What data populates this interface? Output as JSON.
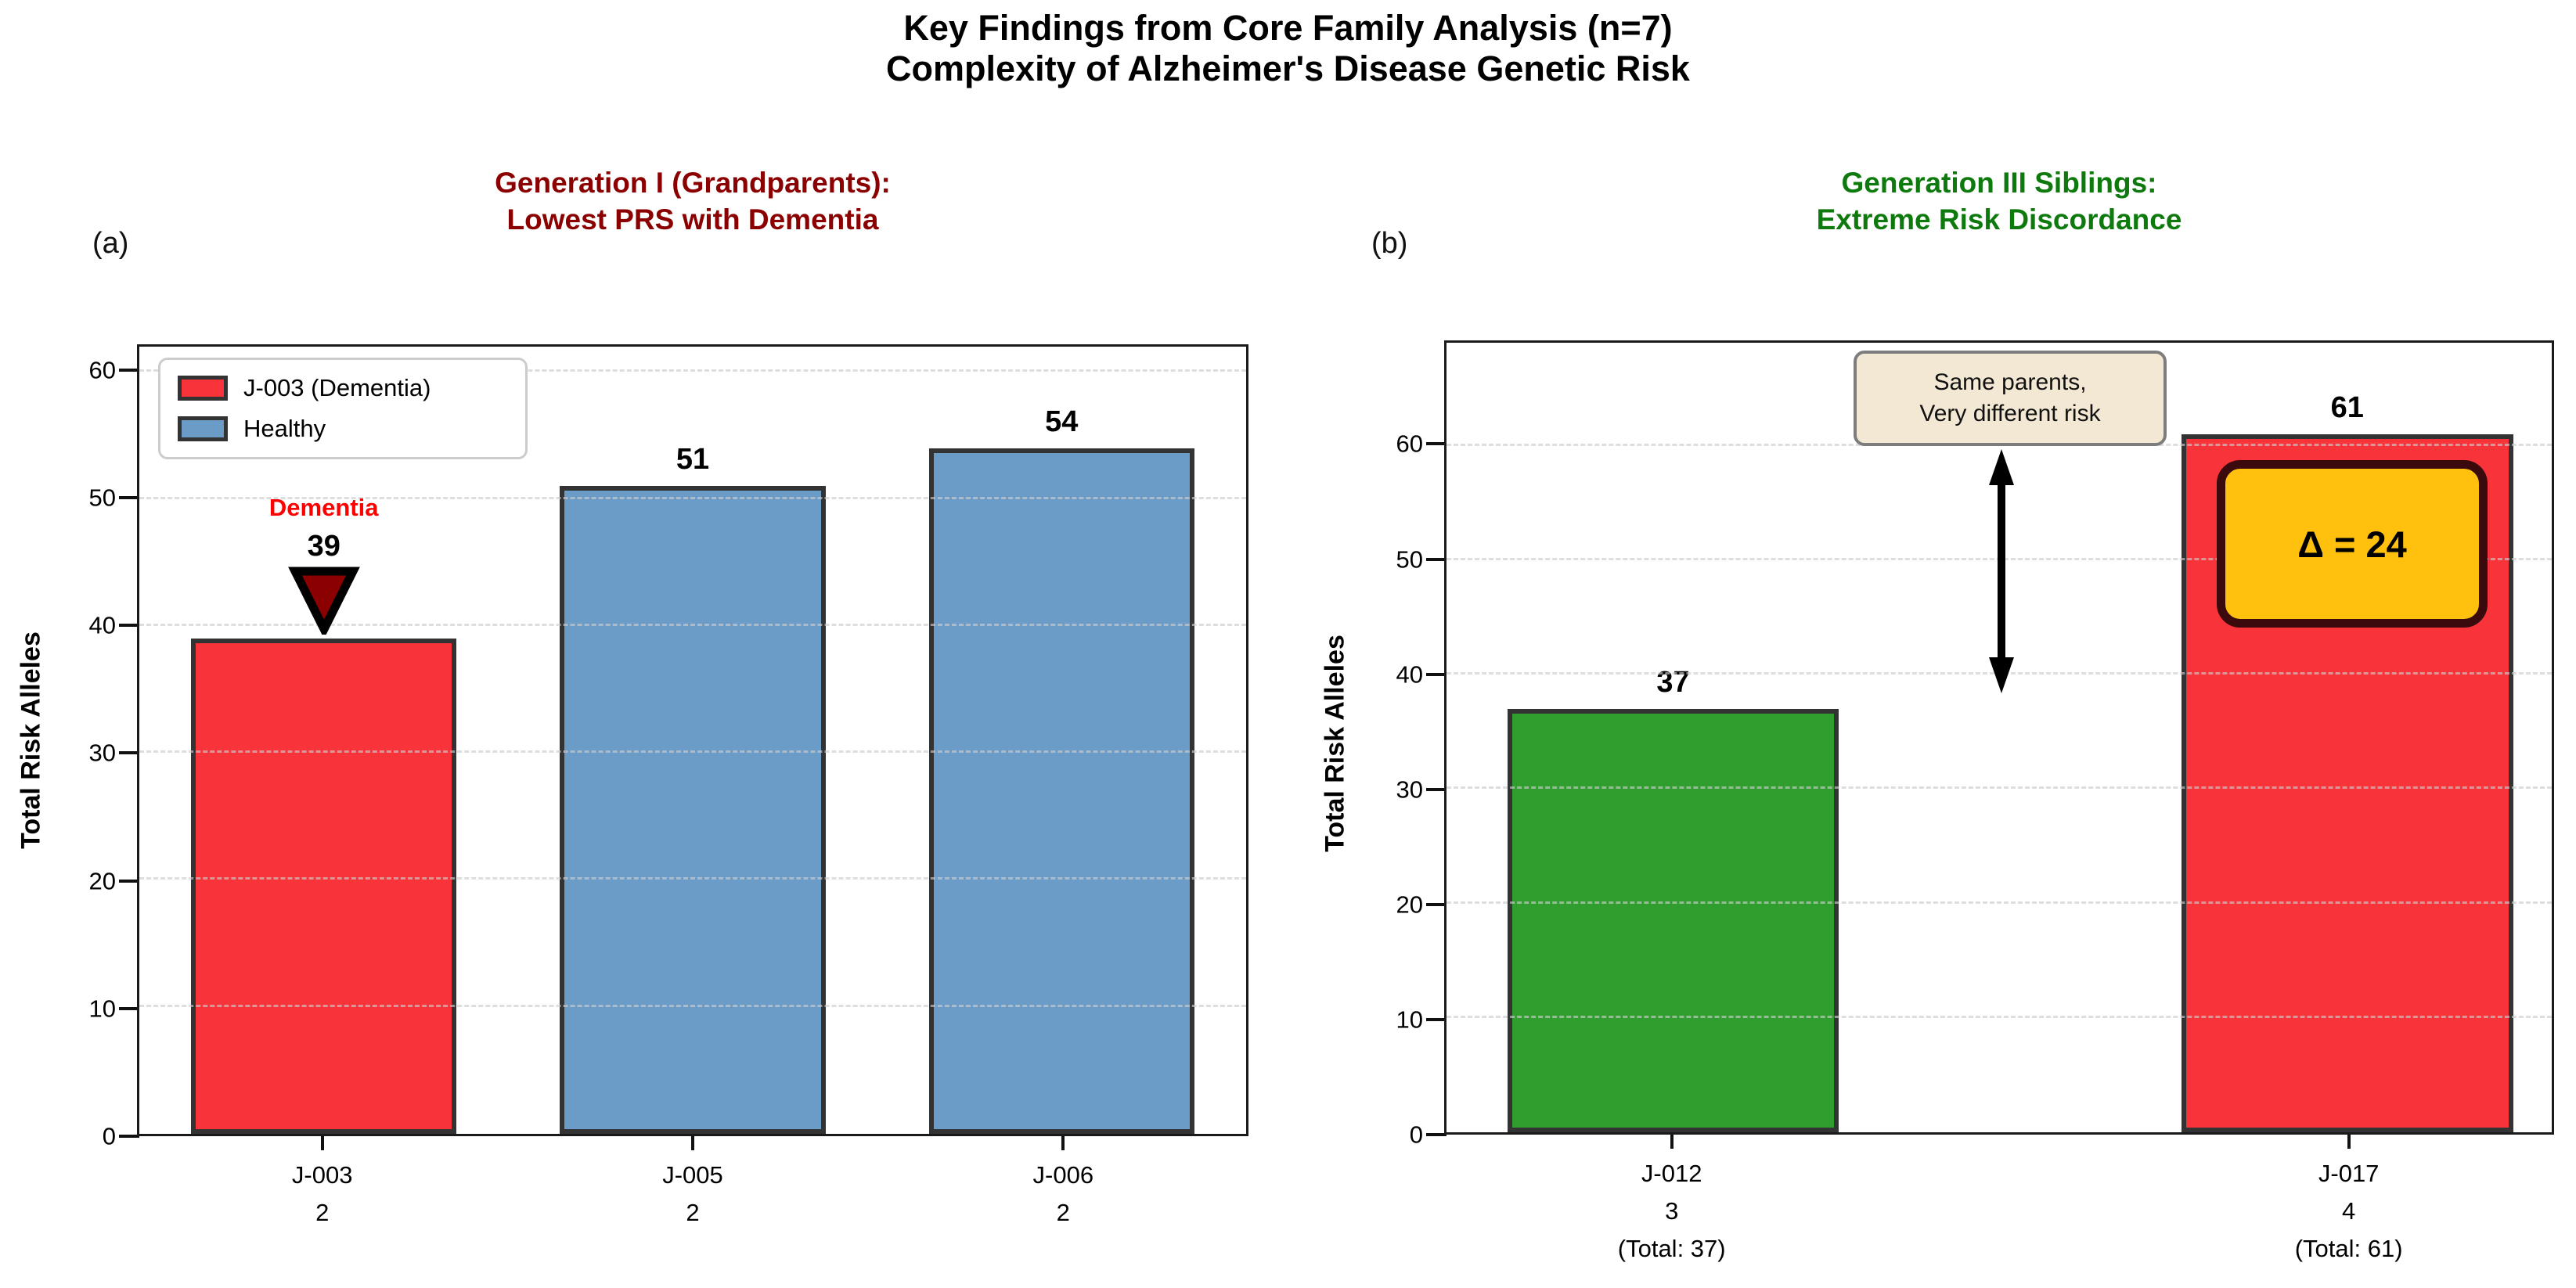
{
  "figure": {
    "title1": "Key Findings from Core Family Analysis (n=7)",
    "title2": "Complexity of Alzheimer's Disease Genetic Risk"
  },
  "colors": {
    "dementia_red": "#F9333A",
    "healthy_blue": "#6B9CC8",
    "low_risk_green": "#2F9E2F",
    "bar_edge": "#333333",
    "panel_a_title": "#8B0000",
    "panel_b_title": "#0E7A0E",
    "gold_badge": "#FFC10D",
    "gold_badge_border": "#3A0A0C",
    "annotation_beige": "#F3E8D4",
    "dementia_text_red": "#FF0000",
    "marker_dark_red": "#8B0000"
  },
  "panel_a": {
    "corner": "(a)",
    "title1": "Generation I (Grandparents):",
    "title2": "Lowest PRS with Dementia",
    "ylabel": "Total Risk Alleles",
    "legend": [
      {
        "label": "J-003 (Dementia)",
        "color": "#F9333A"
      },
      {
        "label": "Healthy",
        "color": "#6B9CC8"
      }
    ],
    "dementia_label": "Dementia"
  },
  "panel_b": {
    "corner": "(b)",
    "title1": "Generation III Siblings:",
    "title2": "Extreme Risk Discordance",
    "ylabel": "Total Risk Alleles",
    "annotation_line1": "Same parents,",
    "annotation_line2": "Very different risk",
    "delta_label": "Δ = 24"
  },
  "chart_data": [
    {
      "type": "bar",
      "panel": "a",
      "title": "Generation I (Grandparents): Lowest PRS with Dementia",
      "categories": [
        "J-003",
        "J-005",
        "J-006"
      ],
      "tick_sublabels": [
        [
          "J-003",
          "2"
        ],
        [
          "J-005",
          "2"
        ],
        [
          "J-006",
          "2"
        ]
      ],
      "values": [
        39,
        51,
        54
      ],
      "bar_colors": [
        "#F9333A",
        "#6B9CC8",
        "#6B9CC8"
      ],
      "xlabel": "",
      "ylabel": "Total Risk Alleles",
      "ylim": [
        0,
        62
      ],
      "yticks": [
        0,
        10,
        20,
        30,
        40,
        50,
        60
      ],
      "grid": "horizontal-dashed",
      "legend_position": "upper-left",
      "series_legend": [
        "J-003 (Dementia)",
        "Healthy"
      ]
    },
    {
      "type": "bar",
      "panel": "b",
      "title": "Generation III Siblings: Extreme Risk Discordance",
      "categories": [
        "J-012",
        "J-017"
      ],
      "tick_sublabels": [
        [
          "J-012",
          "3",
          "(Total: 37)"
        ],
        [
          "J-017",
          "4",
          "(Total: 61)"
        ]
      ],
      "values": [
        37,
        61
      ],
      "bar_colors": [
        "#2F9E2F",
        "#F9333A"
      ],
      "xlabel": "",
      "ylabel": "Total Risk Alleles",
      "ylim": [
        0,
        69
      ],
      "yticks": [
        0,
        10,
        20,
        30,
        40,
        50,
        60
      ],
      "grid": "horizontal-dashed",
      "annotations": {
        "box_text": "Same parents, Very different risk",
        "delta": "Δ = 24",
        "delta_value": 24
      }
    }
  ]
}
